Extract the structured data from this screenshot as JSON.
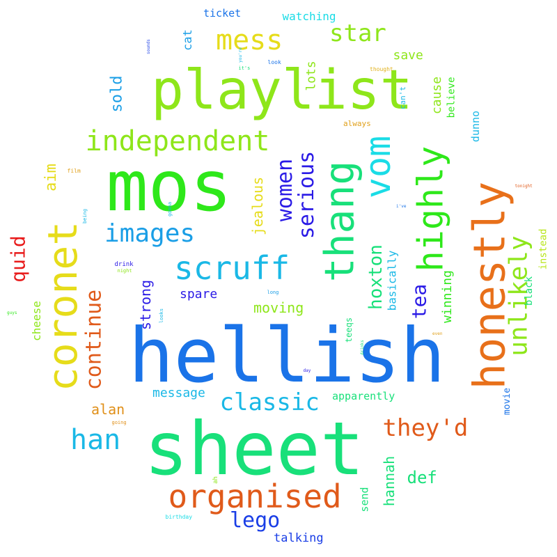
{
  "words": [
    {
      "text": "hellish",
      "color": "#1a73e8",
      "rotated": false
    },
    {
      "text": "sheet",
      "color": "#18e07a",
      "rotated": false
    },
    {
      "text": "mos",
      "color": "#2ee81a",
      "rotated": false
    },
    {
      "text": "playlist",
      "color": "#8ee61a",
      "rotated": false
    },
    {
      "text": "honestly",
      "color": "#e8701a",
      "rotated": true
    },
    {
      "text": "coronet",
      "color": "#e6dc1a",
      "rotated": true
    },
    {
      "text": "thang",
      "color": "#18e07a",
      "rotated": true
    },
    {
      "text": "highly",
      "color": "#2ee81a",
      "rotated": true
    },
    {
      "text": "vom",
      "color": "#1adce6",
      "rotated": true
    },
    {
      "text": "organised",
      "color": "#e05a1a",
      "rotated": false
    },
    {
      "text": "scruff",
      "color": "#1ab8e6",
      "rotated": false
    },
    {
      "text": "independent",
      "color": "#8ee61a",
      "rotated": false
    },
    {
      "text": "mess",
      "color": "#e6dc1a",
      "rotated": false
    },
    {
      "text": "unlikely",
      "color": "#8ee61a",
      "rotated": true
    },
    {
      "text": "classic",
      "color": "#1ab8e6",
      "rotated": false
    },
    {
      "text": "images",
      "color": "#1a9ee6",
      "rotated": false
    },
    {
      "text": "they'd",
      "color": "#e05a1a",
      "rotated": false
    },
    {
      "text": "han",
      "color": "#1ab8e6",
      "rotated": false
    },
    {
      "text": "lego",
      "color": "#1a3ee6",
      "rotated": false
    },
    {
      "text": "star",
      "color": "#8ee61a",
      "rotated": false
    },
    {
      "text": "continue",
      "color": "#e05a1a",
      "rotated": true
    },
    {
      "text": "women",
      "color": "#2a1ae6",
      "rotated": true
    },
    {
      "text": "serious",
      "color": "#2a1ae6",
      "rotated": true
    },
    {
      "text": "hoxton",
      "color": "#18e07a",
      "rotated": true
    },
    {
      "text": "tea",
      "color": "#2a1ae6",
      "rotated": true
    },
    {
      "text": "quid",
      "color": "#e81a1a",
      "rotated": true
    },
    {
      "text": "aim",
      "color": "#e6dc1a",
      "rotated": true
    },
    {
      "text": "sold",
      "color": "#1a9ee6",
      "rotated": true
    },
    {
      "text": "jealous",
      "color": "#e6dc1a",
      "rotated": true
    },
    {
      "text": "strong",
      "color": "#2a1ae6",
      "rotated": true
    },
    {
      "text": "hannah",
      "color": "#18e07a",
      "rotated": true
    },
    {
      "text": "def",
      "color": "#18e07a",
      "rotated": false
    },
    {
      "text": "alan",
      "color": "#e0901a",
      "rotated": false
    },
    {
      "text": "moving",
      "color": "#8ee61a",
      "rotated": false
    },
    {
      "text": "spare",
      "color": "#2a1ae6",
      "rotated": false
    },
    {
      "text": "message",
      "color": "#1ab8e6",
      "rotated": false
    },
    {
      "text": "winning",
      "color": "#2ee81a",
      "rotated": true
    },
    {
      "text": "save",
      "color": "#8ee61a",
      "rotated": false
    },
    {
      "text": "lots",
      "color": "#8ee61a",
      "rotated": true
    },
    {
      "text": "cause",
      "color": "#8ee61a",
      "rotated": true
    },
    {
      "text": "talking",
      "color": "#1a3ee6",
      "rotated": false
    },
    {
      "text": "watching",
      "color": "#1adce6",
      "rotated": false
    },
    {
      "text": "ticket",
      "color": "#1a73e8",
      "rotated": false
    },
    {
      "text": "cheese",
      "color": "#8ee61a",
      "rotated": true
    },
    {
      "text": "basically",
      "color": "#1ab8e6",
      "rotated": true
    },
    {
      "text": "apparently",
      "color": "#18e07a",
      "rotated": false
    },
    {
      "text": "send",
      "color": "#18e07a",
      "rotated": true
    },
    {
      "text": "dunno",
      "color": "#1ab8e6",
      "rotated": true
    },
    {
      "text": "black",
      "color": "#18e07a",
      "rotated": true
    },
    {
      "text": "instead",
      "color": "#b8e61a",
      "rotated": true
    },
    {
      "text": "believe",
      "color": "#2ee81a",
      "rotated": true
    },
    {
      "text": "movie",
      "color": "#1a73e8",
      "rotated": true
    },
    {
      "text": "cat",
      "color": "#1a9ee6",
      "rotated": true
    },
    {
      "text": "teeqs",
      "color": "#18e07a",
      "rotated": true
    },
    {
      "text": "always",
      "color": "#e0a01a",
      "rotated": false
    },
    {
      "text": "can't",
      "color": "#1ab8e6",
      "rotated": true
    },
    {
      "text": "thought",
      "color": "#e0b01a",
      "rotated": false
    },
    {
      "text": "film",
      "color": "#e0a01a",
      "rotated": false
    },
    {
      "text": "drink",
      "color": "#2a1ae6",
      "rotated": false
    },
    {
      "text": "night",
      "color": "#8ee61a",
      "rotated": false
    },
    {
      "text": "look",
      "color": "#1a73e8",
      "rotated": false
    },
    {
      "text": "it's",
      "color": "#18e07a",
      "rotated": false
    },
    {
      "text": "long",
      "color": "#1a9ee6",
      "rotated": false
    },
    {
      "text": "looks",
      "color": "#1ab8e6",
      "rotated": true
    },
    {
      "text": "gonna",
      "color": "#1ab8e6",
      "rotated": true
    },
    {
      "text": "being",
      "color": "#1ab8e6",
      "rotated": true
    },
    {
      "text": "drinks",
      "color": "#18e07a",
      "rotated": true
    },
    {
      "text": "even",
      "color": "#e0a01a",
      "rotated": false
    },
    {
      "text": "going",
      "color": "#e0901a",
      "rotated": false
    },
    {
      "text": "birthday",
      "color": "#1adce6",
      "rotated": false
    },
    {
      "text": "ah",
      "color": "#8ee61a",
      "rotated": true
    },
    {
      "text": "i've",
      "color": "#1a73e8",
      "rotated": false
    },
    {
      "text": "tonight",
      "color": "#e05a1a",
      "rotated": false
    },
    {
      "text": "sounds",
      "color": "#1a3ee6",
      "rotated": true
    },
    {
      "text": "you're",
      "color": "#1ab8e6",
      "rotated": true
    },
    {
      "text": "guys",
      "color": "#2ee81a",
      "rotated": false
    },
    {
      "text": "day",
      "color": "#2a1ae6",
      "rotated": false
    }
  ]
}
